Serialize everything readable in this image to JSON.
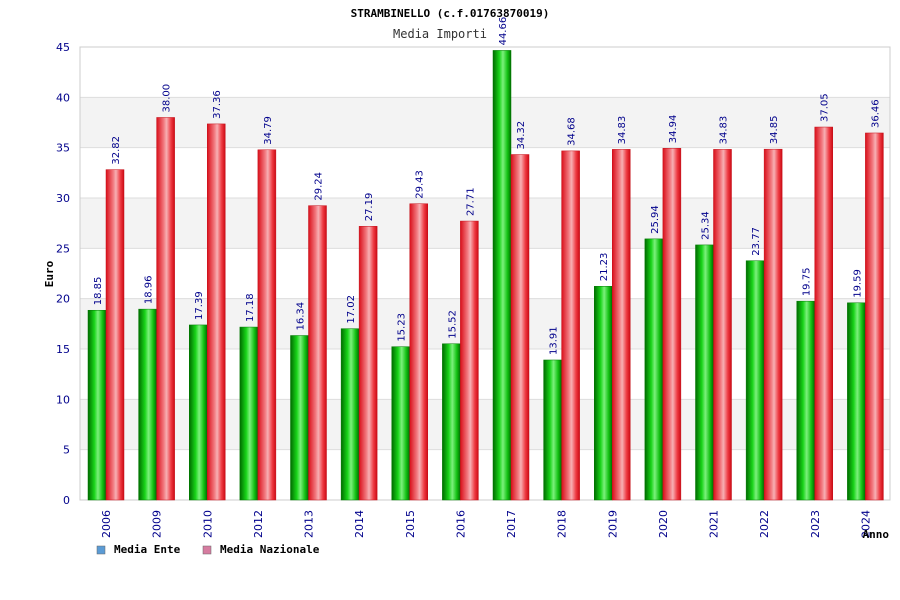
{
  "chart_data": {
    "type": "bar",
    "title": "STRAMBINELLO (c.f.01763870019)",
    "subtitle": "Media Importi",
    "xlabel": "Anno",
    "ylabel": "Euro",
    "ylim": [
      0,
      45
    ],
    "yticks": [
      0,
      5,
      10,
      15,
      20,
      25,
      30,
      35,
      40,
      45
    ],
    "grid": true,
    "legend_position": "bottom-left",
    "categories": [
      "2006",
      "2009",
      "2010",
      "2012",
      "2013",
      "2014",
      "2015",
      "2016",
      "2017",
      "2018",
      "2019",
      "2020",
      "2021",
      "2022",
      "2023",
      "2024"
    ],
    "series": [
      {
        "name": "Media Ente",
        "color": "#00b000",
        "legend_color": "#5b9bd5",
        "values": [
          18.85,
          18.96,
          17.39,
          17.18,
          16.34,
          17.02,
          15.23,
          15.52,
          44.66,
          13.91,
          21.23,
          25.94,
          25.34,
          23.77,
          19.75,
          19.59
        ],
        "labels": [
          "18.85",
          "18.96",
          "17.39",
          "17.18",
          "16.34",
          "17.02",
          "15.23",
          "15.52",
          "44.66",
          "13.91",
          "21.23",
          "25.94",
          "25.34",
          "23.77",
          "19.75",
          "19.59"
        ]
      },
      {
        "name": "Media Nazionale",
        "color": "#e8202a",
        "legend_color": "#d67ca0",
        "values": [
          32.82,
          38.0,
          37.36,
          34.79,
          29.24,
          27.19,
          29.43,
          27.71,
          34.32,
          34.68,
          34.83,
          34.94,
          34.83,
          34.85,
          37.05,
          36.46
        ],
        "labels": [
          "32.82",
          "38.00",
          "37.36",
          "34.79",
          "29.24",
          "27.19",
          "29.43",
          "27.71",
          "34.32",
          "34.68",
          "34.83",
          "34.94",
          "34.83",
          "34.85",
          "37.05",
          "36.46"
        ]
      }
    ]
  }
}
